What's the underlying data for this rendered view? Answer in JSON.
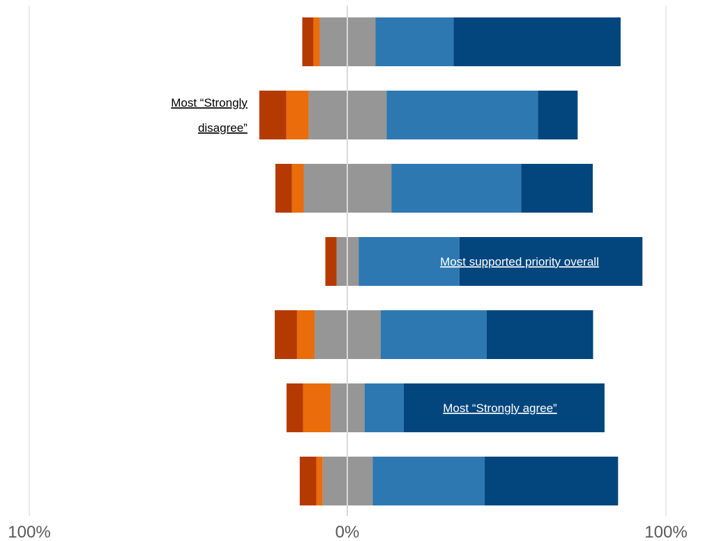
{
  "chart_data": {
    "type": "bar",
    "subtype": "diverging-stacked-bar",
    "orientation": "horizontal",
    "xlim": [
      -100,
      100
    ],
    "x_tick_labels": [
      "100%",
      "0%",
      "100%"
    ],
    "grid": true,
    "legend": "none",
    "segment_colors": [
      "#b53a02",
      "#ea6c0a",
      "#969696",
      "#2e78b2",
      "#03467e"
    ],
    "rows": [
      {
        "segments": [
          3.5,
          2.0,
          17.5,
          24.5,
          52.5
        ]
      },
      {
        "segments": [
          8.5,
          7.0,
          24.5,
          47.5,
          12.5
        ]
      },
      {
        "segments": [
          5.2,
          3.7,
          27.6,
          40.7,
          22.5
        ]
      },
      {
        "segments": [
          3.5,
          0.0,
          7.0,
          31.6,
          57.5
        ]
      },
      {
        "segments": [
          7.0,
          5.5,
          20.8,
          33.3,
          33.4
        ]
      },
      {
        "segments": [
          5.2,
          8.7,
          10.6,
          12.3,
          63.1
        ]
      },
      {
        "segments": [
          5.2,
          2.0,
          15.7,
          35.2,
          41.9
        ]
      }
    ],
    "annotations": [
      {
        "lines": [
          "Most “Strongly",
          "disagree”"
        ],
        "row": 1,
        "style": "dark"
      },
      {
        "lines": [
          "Most supported priority overall"
        ],
        "row": 3,
        "style": "light"
      },
      {
        "lines": [
          "Most “Strongly agree”"
        ],
        "row": 5,
        "style": "light"
      }
    ]
  }
}
